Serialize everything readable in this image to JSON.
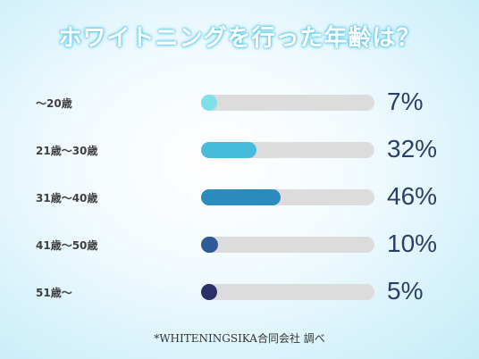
{
  "title": "ホワイトニングを行った年齢は？",
  "note": "*WHITENINGSIKA合同会社 調べ",
  "chart_data": {
    "type": "bar",
    "orientation": "horizontal",
    "title": "ホワイトニングを行った年齢は？",
    "categories": [
      "〜20歳",
      "21歳〜30歳",
      "31歳〜40歳",
      "41歳〜50歳",
      "51歳〜"
    ],
    "values": [
      7,
      32,
      46,
      10,
      5
    ],
    "value_labels": [
      "7%",
      "32%",
      "46%",
      "10%",
      "5%"
    ],
    "unit": "%",
    "xlim": [
      0,
      100
    ],
    "grid": false,
    "bar_colors": [
      "#7ee0ea",
      "#47bcda",
      "#2b8bbd",
      "#2f5c98",
      "#2a2f66"
    ],
    "track_color": "#dcdcdc"
  }
}
